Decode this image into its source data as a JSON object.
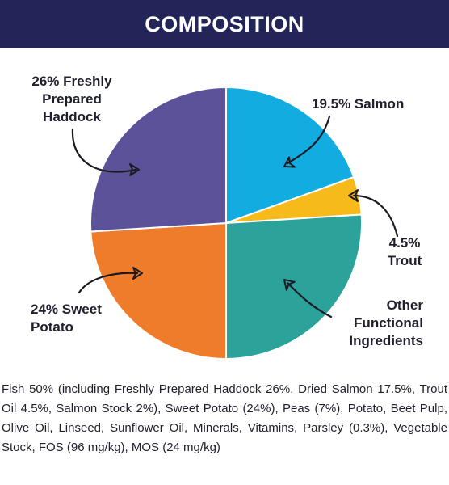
{
  "header": {
    "title": "COMPOSITION"
  },
  "chart_data": {
    "type": "pie",
    "title": "COMPOSITION",
    "slices": [
      {
        "label": "19.5% Salmon",
        "value": 19.5,
        "color": "#12ACE0"
      },
      {
        "label": "4.5% Trout",
        "value": 4.5,
        "color": "#F6BA1B"
      },
      {
        "label": "Other Functional Ingredients",
        "value": 26,
        "color": "#2BA29A"
      },
      {
        "label": "24% Sweet Potato",
        "value": 24,
        "color": "#EF7C2B"
      },
      {
        "label": "26% Freshly Prepared Haddock",
        "value": 26,
        "color": "#5C5299"
      }
    ]
  },
  "labels": {
    "haddock": [
      "26% Freshly",
      "Prepared",
      "Haddock"
    ],
    "salmon": [
      "19.5% Salmon"
    ],
    "trout": [
      "4.5%",
      "Trout"
    ],
    "other": [
      "Other",
      "Functional",
      "Ingredients"
    ],
    "sweet_potato": [
      "24% Sweet",
      "Potato"
    ]
  },
  "description": "Fish 50% (including Freshly Prepared Haddock 26%, Dried Salmon 17.5%, Trout Oil 4.5%, Salmon Stock 2%), Sweet Potato (24%), Peas (7%), Potato, Beet Pulp, Olive Oil, Linseed, Sunflower Oil, Minerals, Vitamins, Parsley (0.3%), Vegetable Stock, FOS (96 mg/kg), MOS (24 mg/kg)"
}
